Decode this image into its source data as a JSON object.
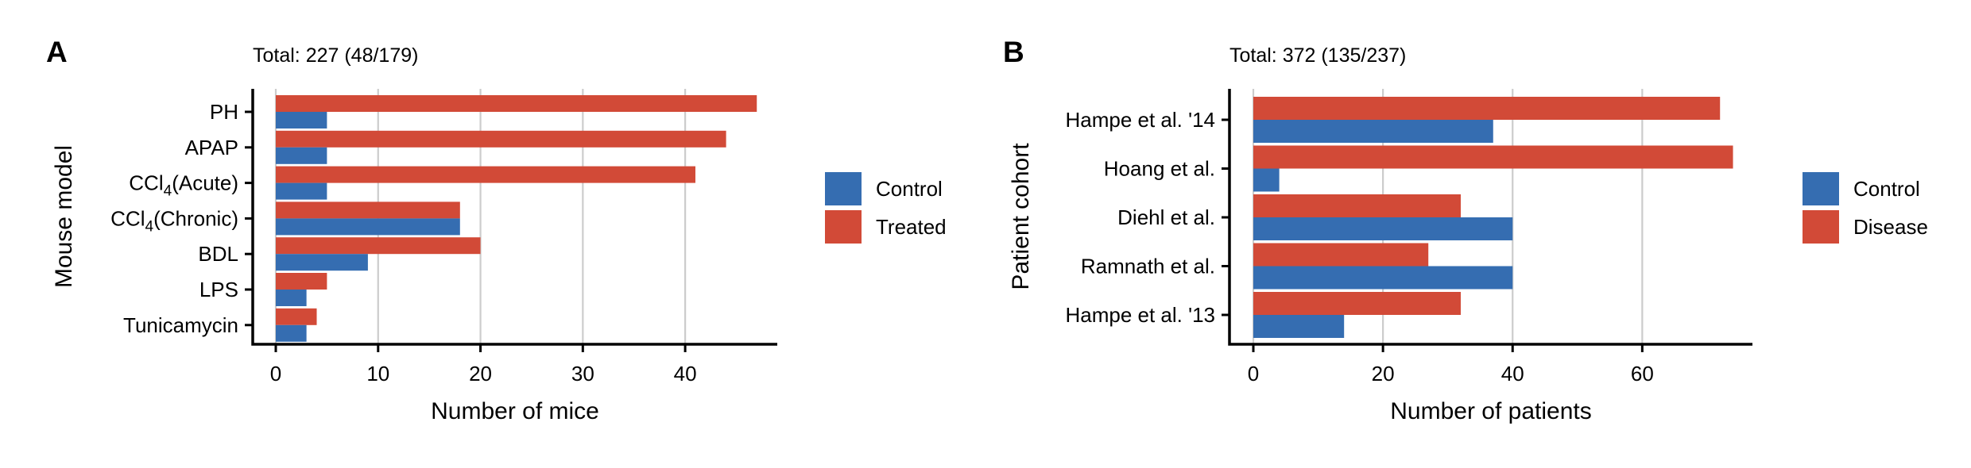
{
  "colors": {
    "control": "#356db1",
    "treated": "#d24a37",
    "grid": "#cccccc"
  },
  "chart_data": [
    {
      "panel": "A",
      "type": "bar",
      "orientation": "horizontal",
      "title": "Total: 227 (48/179)",
      "xlabel": "Number of mice",
      "ylabel": "Mouse model",
      "xlim": [
        0,
        49
      ],
      "xticks": [
        0,
        10,
        20,
        30,
        40
      ],
      "grid": "vertical",
      "legend_position": "right",
      "categories": [
        "PH",
        "APAP",
        "CCl4(Acute)",
        "CCl4(Chronic)",
        "BDL",
        "LPS",
        "Tunicamycin"
      ],
      "series": [
        {
          "name": "Control",
          "color": "#356db1",
          "values": [
            5,
            5,
            5,
            18,
            9,
            3,
            3
          ]
        },
        {
          "name": "Treated",
          "color": "#d24a37",
          "values": [
            47,
            44,
            41,
            18,
            20,
            5,
            4
          ]
        }
      ]
    },
    {
      "panel": "B",
      "type": "bar",
      "orientation": "horizontal",
      "title": "Total: 372 (135/237)",
      "xlabel": "Number of patients",
      "ylabel": "Patient cohort",
      "xlim": [
        0,
        77
      ],
      "xticks": [
        0,
        20,
        40,
        60
      ],
      "grid": "vertical",
      "legend_position": "right",
      "categories": [
        "Hampe et al. '14",
        "Hoang et al.",
        "Diehl et al.",
        "Ramnath et al.",
        "Hampe et al. '13"
      ],
      "series": [
        {
          "name": "Control",
          "color": "#356db1",
          "values": [
            37,
            4,
            40,
            40,
            14
          ]
        },
        {
          "name": "Disease",
          "color": "#d24a37",
          "values": [
            72,
            74,
            32,
            27,
            32
          ]
        }
      ]
    }
  ]
}
